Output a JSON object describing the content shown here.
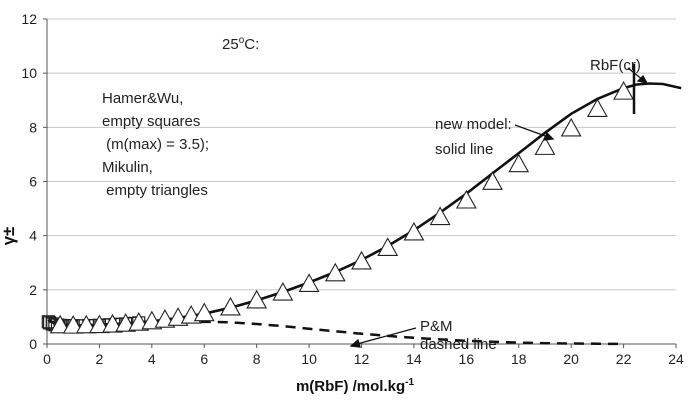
{
  "chart_data": {
    "type": "scatter",
    "xlabel": "m(RbF) /mol.kg",
    "xlabel_sup": "-1",
    "ylabel": "γ±",
    "xlim": [
      0,
      24
    ],
    "ylim": [
      0,
      12
    ],
    "xticks": [
      0,
      2,
      4,
      6,
      8,
      10,
      12,
      14,
      16,
      18,
      20,
      22,
      24
    ],
    "yticks": [
      0,
      2,
      4,
      6,
      8,
      10,
      12
    ],
    "grid": "horizontal",
    "series": [
      {
        "name": "Hamer&Wu",
        "marker": "square",
        "x": [
          0.05,
          0.1,
          0.2,
          0.3,
          0.4,
          0.5,
          0.6,
          0.7,
          0.8,
          0.9,
          1.0,
          1.2,
          1.4,
          1.6,
          1.8,
          2.0,
          2.2,
          2.4,
          2.6,
          2.8,
          3.0,
          3.2,
          3.5
        ],
        "y": [
          0.82,
          0.78,
          0.74,
          0.71,
          0.7,
          0.69,
          0.68,
          0.67,
          0.67,
          0.67,
          0.67,
          0.67,
          0.67,
          0.68,
          0.68,
          0.69,
          0.7,
          0.71,
          0.72,
          0.73,
          0.74,
          0.76,
          0.78
        ]
      },
      {
        "name": "Mikulin",
        "marker": "triangle",
        "x": [
          0.5,
          1,
          1.5,
          2,
          2.5,
          3,
          3.5,
          4,
          4.5,
          5,
          5.5,
          6,
          7,
          8,
          9,
          10,
          11,
          12,
          13,
          14,
          15,
          16,
          17,
          18,
          19,
          20,
          21,
          22
        ],
        "y": [
          0.67,
          0.66,
          0.67,
          0.68,
          0.7,
          0.73,
          0.77,
          0.82,
          0.88,
          0.95,
          1.03,
          1.12,
          1.33,
          1.59,
          1.88,
          2.2,
          2.59,
          3.03,
          3.53,
          4.1,
          4.67,
          5.28,
          5.97,
          6.62,
          7.26,
          7.94,
          8.66,
          9.3
        ]
      },
      {
        "name": "new model",
        "line": "solid",
        "x": [
          0.05,
          0.3,
          0.6,
          1,
          1.5,
          2,
          3,
          4,
          5,
          6,
          7,
          8,
          9,
          10,
          11,
          12,
          13,
          14,
          15,
          16,
          17,
          18,
          19,
          20,
          21,
          22,
          22.5,
          23,
          23.5,
          24.2
        ],
        "y": [
          0.9,
          0.75,
          0.7,
          0.68,
          0.69,
          0.71,
          0.76,
          0.84,
          0.96,
          1.12,
          1.34,
          1.61,
          1.92,
          2.27,
          2.66,
          3.1,
          3.62,
          4.2,
          4.85,
          5.55,
          6.3,
          7.05,
          7.8,
          8.5,
          9.05,
          9.45,
          9.58,
          9.62,
          9.6,
          9.45
        ]
      },
      {
        "name": "P&M",
        "line": "dashed",
        "x": [
          0.05,
          0.5,
          1,
          2,
          3,
          4,
          5,
          6,
          7,
          8,
          9,
          10,
          11,
          12,
          13,
          14,
          15,
          16,
          17,
          18,
          19,
          20,
          21,
          22
        ],
        "y": [
          0.85,
          0.72,
          0.7,
          0.72,
          0.75,
          0.78,
          0.81,
          0.82,
          0.8,
          0.74,
          0.66,
          0.56,
          0.47,
          0.38,
          0.3,
          0.23,
          0.17,
          0.12,
          0.08,
          0.05,
          0.03,
          0.02,
          0.01,
          0.0
        ]
      }
    ],
    "annotations": {
      "temperature": "25",
      "temperature_sup": "o",
      "temperature_unit": "C:",
      "legend_lines": [
        "Hamer&Wu,",
        "empty squares",
        " (m(max) = 3.5);",
        "Mikulin,",
        " empty triangles"
      ],
      "new_model": [
        "new model:",
        "solid line"
      ],
      "pm": [
        "P&M",
        "dashed line"
      ],
      "rbf": "RbF(cr)"
    }
  }
}
